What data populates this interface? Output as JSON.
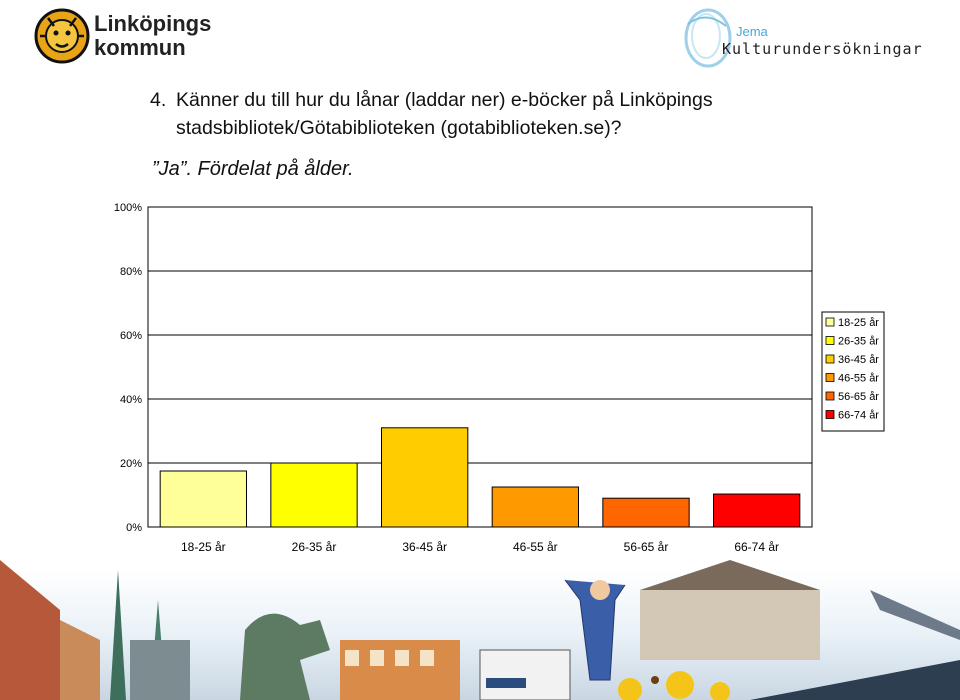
{
  "header": {
    "logo_left_line1": "Linköpings",
    "logo_left_line2": "kommun",
    "logo_right_small": "Jema",
    "logo_right_large": "Kulturundersökningar"
  },
  "question": {
    "number": "4.",
    "line1": "Känner du till hur du lånar (laddar ner) e-böcker på Linköpings",
    "line2": "stadsbibliotek/Götabiblioteken (gotabiblioteken.se)?"
  },
  "subtitle": "”Ja”. Fördelat på ålder.",
  "chart_data": {
    "type": "bar",
    "categories": [
      "18-25 år",
      "26-35 år",
      "36-45 år",
      "46-55 år",
      "56-65 år",
      "66-74 år"
    ],
    "values": [
      0.175,
      0.2,
      0.31,
      0.125,
      0.09,
      0.103
    ],
    "colors": [
      "#FFFF99",
      "#FFFF00",
      "#FFCC00",
      "#FF9900",
      "#FF6600",
      "#FF0000"
    ],
    "ylim": [
      0,
      1
    ],
    "yticks": [
      0,
      0.2,
      0.4,
      0.6,
      0.8,
      1.0
    ],
    "ytick_labels": [
      "0%",
      "20%",
      "40%",
      "60%",
      "80%",
      "100%"
    ],
    "grid": true,
    "legend": {
      "position": "right",
      "entries": [
        "18-25 år",
        "26-35 år",
        "36-45 år",
        "46-55 år",
        "56-65 år",
        "66-74 år"
      ]
    },
    "xlabel": "",
    "ylabel": ""
  }
}
